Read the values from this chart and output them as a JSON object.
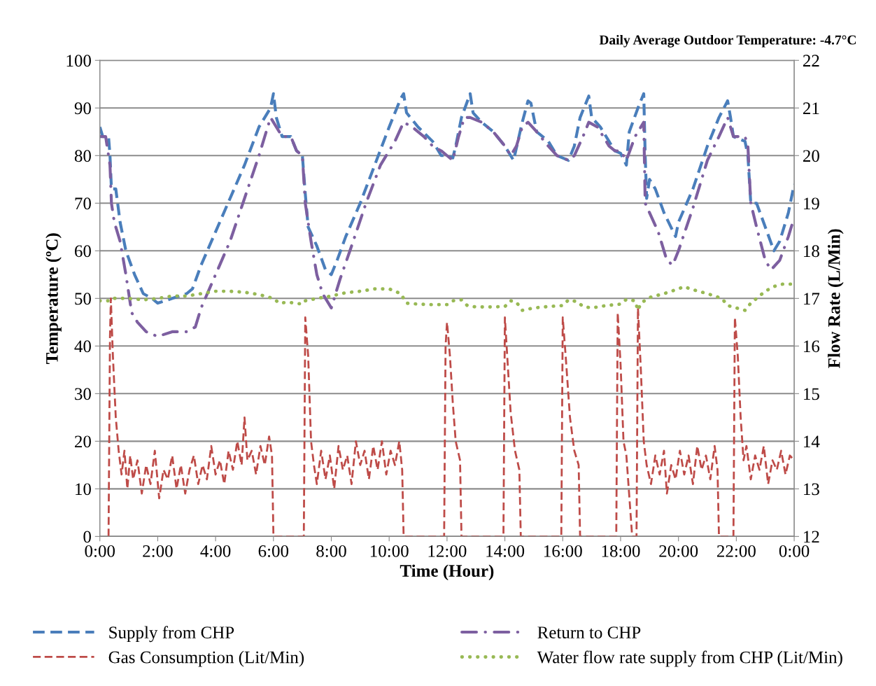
{
  "chart_data": {
    "type": "line",
    "xlabel": "Time (Hour)",
    "ylabel": "Temperature (ºC)",
    "y2label": "Flow Rate (L/Min)",
    "annotations": [
      "Daily Average Outdoor Temperature: -4.7°C"
    ],
    "xlim": [
      0,
      24
    ],
    "xticks": [
      {
        "value": 0,
        "label": "0:00"
      },
      {
        "value": 2,
        "label": "2:00"
      },
      {
        "value": 4,
        "label": "4:00"
      },
      {
        "value": 6,
        "label": "6:00"
      },
      {
        "value": 8,
        "label": "8:00"
      },
      {
        "value": 10,
        "label": "10:00"
      },
      {
        "value": 12,
        "label": "12:00"
      },
      {
        "value": 14,
        "label": "14:00"
      },
      {
        "value": 16,
        "label": "16:00"
      },
      {
        "value": 18,
        "label": "18:00"
      },
      {
        "value": 20,
        "label": "20:00"
      },
      {
        "value": 22,
        "label": "22:00"
      },
      {
        "value": 24,
        "label": "0:00"
      }
    ],
    "ylim": [
      0,
      100
    ],
    "yticks": [
      0,
      10,
      20,
      30,
      40,
      50,
      60,
      70,
      80,
      90,
      100
    ],
    "y2lim": [
      12,
      22
    ],
    "y2ticks": [
      12,
      13,
      14,
      15,
      16,
      17,
      18,
      19,
      20,
      21,
      22
    ],
    "grid": "y",
    "legend": "bottom",
    "marker": "none",
    "series": [
      {
        "name": "Supply from CHP",
        "color": "#4a7ebb",
        "line_style": "dashed",
        "x": [
          0.0,
          0.1,
          0.3,
          0.35,
          0.4,
          0.55,
          0.7,
          0.9,
          1.2,
          1.5,
          1.8,
          2.0,
          2.5,
          3.0,
          3.2,
          3.5,
          4.0,
          4.5,
          5.0,
          5.5,
          5.9,
          6.0,
          6.1,
          6.3,
          6.6,
          6.8,
          7.0,
          7.1,
          7.2,
          7.5,
          7.8,
          8.0,
          8.2,
          8.5,
          9.0,
          9.5,
          10.0,
          10.4,
          10.5,
          10.6,
          11.0,
          11.5,
          11.8,
          12.0,
          12.2,
          12.3,
          12.5,
          12.8,
          12.9,
          13.2,
          13.6,
          14.0,
          14.2,
          14.3,
          14.6,
          14.8,
          14.9,
          15.1,
          15.5,
          15.8,
          16.2,
          16.4,
          16.6,
          16.9,
          17.0,
          17.3,
          17.6,
          17.8,
          18.0,
          18.2,
          18.3,
          18.6,
          18.8,
          18.85,
          18.9,
          19.0,
          19.2,
          19.5,
          19.9,
          20.0,
          20.5,
          21.0,
          21.4,
          21.7,
          21.8,
          21.9,
          22.3,
          22.4,
          22.5,
          22.7,
          23.0,
          23.3,
          23.5,
          23.8,
          24.0
        ],
        "values": [
          86,
          84,
          84,
          80,
          73,
          73,
          66,
          60,
          55,
          51,
          50,
          49,
          50,
          51,
          52,
          57,
          64,
          71,
          78,
          86,
          90,
          93,
          88,
          84,
          84,
          81,
          80,
          72,
          65,
          61,
          56,
          55,
          58,
          63,
          70,
          78,
          86,
          92,
          93,
          89,
          86,
          83,
          80,
          80,
          79.5,
          82,
          88,
          93,
          89,
          87,
          85,
          82,
          80,
          79,
          87,
          91.5,
          91,
          85,
          83,
          80,
          79,
          82,
          88,
          92.5,
          88,
          86,
          83,
          81,
          80.5,
          78,
          85,
          90,
          93,
          80,
          71,
          75,
          73,
          68,
          63,
          66,
          73,
          82,
          88,
          91.5,
          88,
          84,
          83,
          80,
          70,
          70,
          65,
          60,
          62,
          68,
          74
        ]
      },
      {
        "name": "Return to CHP",
        "color": "#7d5fa0",
        "line_style": "dashdot",
        "x": [
          0.0,
          0.2,
          0.35,
          0.4,
          0.5,
          0.7,
          0.9,
          1.1,
          1.3,
          1.6,
          2.0,
          2.5,
          3.0,
          3.3,
          3.5,
          4.0,
          4.5,
          5.0,
          5.5,
          5.8,
          5.9,
          6.1,
          6.3,
          6.6,
          6.8,
          7.0,
          7.1,
          7.3,
          7.5,
          7.7,
          8.0,
          8.3,
          8.7,
          9.2,
          9.7,
          10.2,
          10.5,
          10.8,
          11.2,
          11.5,
          11.8,
          12.0,
          12.2,
          12.4,
          12.6,
          12.8,
          13.2,
          13.6,
          14.0,
          14.2,
          14.4,
          14.6,
          14.8,
          15.1,
          15.5,
          15.8,
          16.2,
          16.4,
          16.7,
          16.9,
          17.2,
          17.6,
          17.8,
          18.0,
          18.2,
          18.5,
          18.8,
          18.85,
          19.0,
          19.3,
          19.6,
          19.8,
          20.0,
          20.5,
          21.0,
          21.4,
          21.7,
          21.9,
          22.3,
          22.4,
          22.5,
          22.7,
          23.0,
          23.2,
          23.5,
          23.8,
          24.0
        ],
        "values": [
          84,
          84,
          78,
          70,
          66,
          62,
          55,
          47,
          45,
          43,
          42,
          43,
          43,
          44,
          48,
          55,
          62,
          71,
          80,
          86,
          88,
          86,
          84,
          84,
          81,
          80,
          70,
          62,
          55,
          51,
          48,
          54,
          61,
          70,
          78,
          83,
          87,
          86,
          84,
          82,
          81,
          80,
          79,
          84,
          88,
          88,
          87,
          85,
          82,
          80,
          82,
          86,
          87,
          85,
          82,
          80,
          79,
          80,
          84,
          87,
          86,
          82,
          81,
          81,
          79,
          84,
          87,
          70,
          68,
          64,
          58,
          57,
          60,
          69,
          79,
          84,
          88,
          84,
          84,
          82,
          70,
          65,
          58,
          56,
          58,
          63,
          67
        ]
      },
      {
        "name": "Gas Consumption (Lit/Min)",
        "color": "#be4b48",
        "line_style": "dashed",
        "x": [
          0.3,
          0.35,
          0.38,
          0.45,
          0.55,
          0.65,
          0.75,
          0.85,
          0.95,
          1.05,
          1.15,
          1.3,
          1.45,
          1.6,
          1.75,
          1.9,
          2.05,
          2.2,
          2.35,
          2.5,
          2.65,
          2.8,
          2.95,
          3.1,
          3.25,
          3.4,
          3.55,
          3.7,
          3.85,
          4.0,
          4.15,
          4.3,
          4.45,
          4.6,
          4.75,
          4.9,
          5.0,
          5.1,
          5.25,
          5.4,
          5.55,
          5.7,
          5.85,
          5.95,
          6.0,
          7.05,
          7.1,
          7.2,
          7.3,
          7.4,
          7.5,
          7.65,
          7.8,
          7.95,
          8.1,
          8.25,
          8.4,
          8.55,
          8.7,
          8.85,
          9.0,
          9.15,
          9.3,
          9.45,
          9.6,
          9.75,
          9.9,
          10.05,
          10.2,
          10.35,
          10.45,
          10.5,
          11.9,
          11.95,
          12.0,
          12.1,
          12.2,
          12.3,
          12.45,
          12.5,
          13.95,
          14.0,
          14.1,
          14.2,
          14.35,
          14.5,
          14.55,
          15.95,
          16.0,
          16.1,
          16.25,
          16.4,
          16.55,
          16.6,
          17.85,
          17.9,
          18.0,
          18.1,
          18.2,
          18.4,
          18.55,
          18.6,
          18.7,
          18.8,
          18.9,
          19.05,
          19.2,
          19.35,
          19.5,
          19.6,
          19.75,
          19.9,
          20.05,
          20.2,
          20.35,
          20.5,
          20.65,
          20.8,
          20.95,
          21.1,
          21.25,
          21.35,
          21.4,
          21.9,
          21.95,
          22.05,
          22.15,
          22.25,
          22.35,
          22.5,
          22.65,
          22.8,
          22.95,
          23.1,
          23.25,
          23.4,
          23.55,
          23.7,
          23.85,
          24.0
        ],
        "values": [
          0,
          42,
          50,
          38,
          25,
          18,
          13,
          18,
          10,
          17,
          12,
          16,
          9,
          15,
          11,
          18,
          8,
          14,
          12,
          17,
          10,
          15,
          9,
          14,
          17,
          11,
          15,
          12,
          19,
          13,
          16,
          11,
          18,
          14,
          20,
          15,
          25,
          16,
          18,
          13,
          19,
          15,
          21,
          17,
          0,
          0,
          46,
          38,
          20,
          15,
          11,
          18,
          12,
          17,
          10,
          19,
          14,
          17,
          11,
          20,
          15,
          18,
          12,
          19,
          14,
          20,
          13,
          18,
          15,
          20,
          14,
          0,
          0,
          40,
          45,
          38,
          28,
          20,
          16,
          0,
          0,
          46,
          36,
          26,
          18,
          14,
          0,
          0,
          46,
          38,
          25,
          18,
          15,
          0,
          0,
          47,
          36,
          20,
          17,
          0,
          0,
          48,
          35,
          20,
          15,
          11,
          17,
          13,
          18,
          9,
          15,
          12,
          18,
          13,
          17,
          11,
          19,
          14,
          17,
          12,
          19,
          14,
          0,
          0,
          46,
          38,
          25,
          16,
          19,
          12,
          17,
          14,
          19,
          11,
          16,
          14,
          18,
          13,
          17,
          16
        ]
      },
      {
        "name": "Water flow rate supply from CHP (Lit/Min)",
        "color": "#98b954",
        "line_style": "dotted",
        "axis": "y2",
        "x": [
          0.0,
          0.4,
          0.5,
          1.0,
          1.5,
          2.0,
          2.5,
          3.0,
          3.5,
          4.0,
          4.5,
          5.0,
          5.5,
          6.0,
          6.2,
          6.5,
          7.0,
          7.1,
          7.5,
          8.0,
          8.5,
          9.0,
          9.5,
          10.0,
          10.4,
          10.5,
          10.6,
          11.0,
          11.5,
          12.0,
          12.2,
          12.5,
          12.7,
          13.0,
          13.5,
          14.0,
          14.2,
          14.4,
          14.6,
          15.0,
          15.5,
          16.0,
          16.2,
          16.5,
          16.7,
          17.0,
          17.5,
          18.0,
          18.2,
          18.5,
          18.6,
          18.7,
          19.0,
          19.5,
          20.0,
          20.2,
          20.4,
          21.0,
          21.5,
          21.7,
          22.0,
          22.3,
          22.5,
          22.8,
          23.0,
          23.3,
          23.6,
          24.0
        ],
        "values": [
          16.95,
          16.95,
          17.0,
          17.0,
          16.97,
          17.0,
          17.05,
          17.05,
          17.1,
          17.15,
          17.15,
          17.13,
          17.08,
          17.0,
          16.9,
          16.92,
          16.88,
          16.95,
          17.0,
          17.05,
          17.12,
          17.15,
          17.2,
          17.2,
          17.1,
          17.0,
          16.9,
          16.88,
          16.87,
          16.87,
          16.95,
          16.97,
          16.85,
          16.82,
          16.82,
          16.83,
          16.95,
          16.92,
          16.75,
          16.8,
          16.83,
          16.85,
          16.97,
          16.93,
          16.83,
          16.8,
          16.85,
          16.88,
          16.98,
          16.95,
          16.75,
          16.9,
          17.02,
          17.1,
          17.2,
          17.25,
          17.2,
          17.1,
          17.0,
          16.85,
          16.8,
          16.75,
          16.9,
          17.05,
          17.15,
          17.25,
          17.3,
          17.3
        ]
      }
    ]
  }
}
